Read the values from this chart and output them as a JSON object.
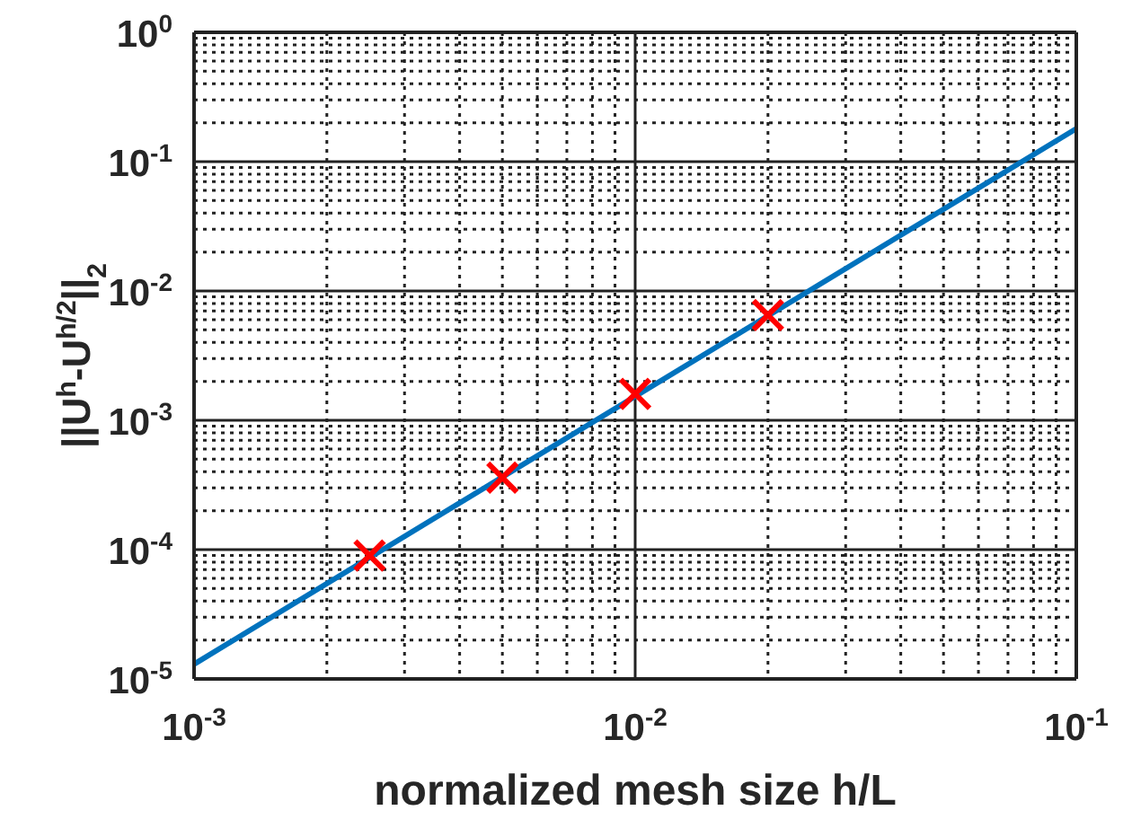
{
  "chart_data": {
    "type": "line",
    "xlabel": "normalized mesh size h/L",
    "ylabel": "||U$^{h}$-U$^{h/2}$||$_{2}$",
    "log": "xy",
    "grid": true,
    "xlim": [
      0.001,
      0.1
    ],
    "xticks": [
      {
        "value": 0.001,
        "label": "10$^{-3}$"
      },
      {
        "value": 0.01,
        "label": "10$^{-2}$"
      },
      {
        "value": 0.1,
        "label": "10$^{-1}$"
      }
    ],
    "ylim": [
      1e-05,
      1
    ],
    "yticks": [
      {
        "value": 1e-05,
        "label": "10$^{-5}$"
      },
      {
        "value": 0.0001,
        "label": "10$^{-4}$"
      },
      {
        "value": 0.001,
        "label": "10$^{-3}$"
      },
      {
        "value": 0.01,
        "label": "10$^{-2}$"
      },
      {
        "value": 0.1,
        "label": "10$^{-1}$"
      },
      {
        "value": 1,
        "label": "10$^{0}$"
      }
    ],
    "series": [
      {
        "color": "#0072bd",
        "marker": "none",
        "line_style": "solid",
        "x": [
          0.001,
          0.1
        ],
        "values": [
          1.3e-05,
          0.18
        ]
      },
      {
        "type": "scatter",
        "color": "#ff0000",
        "marker": "cross",
        "x": [
          0.0025,
          0.005,
          0.01,
          0.02
        ],
        "values": [
          9e-05,
          0.00036,
          0.0016,
          0.0065
        ]
      }
    ]
  }
}
